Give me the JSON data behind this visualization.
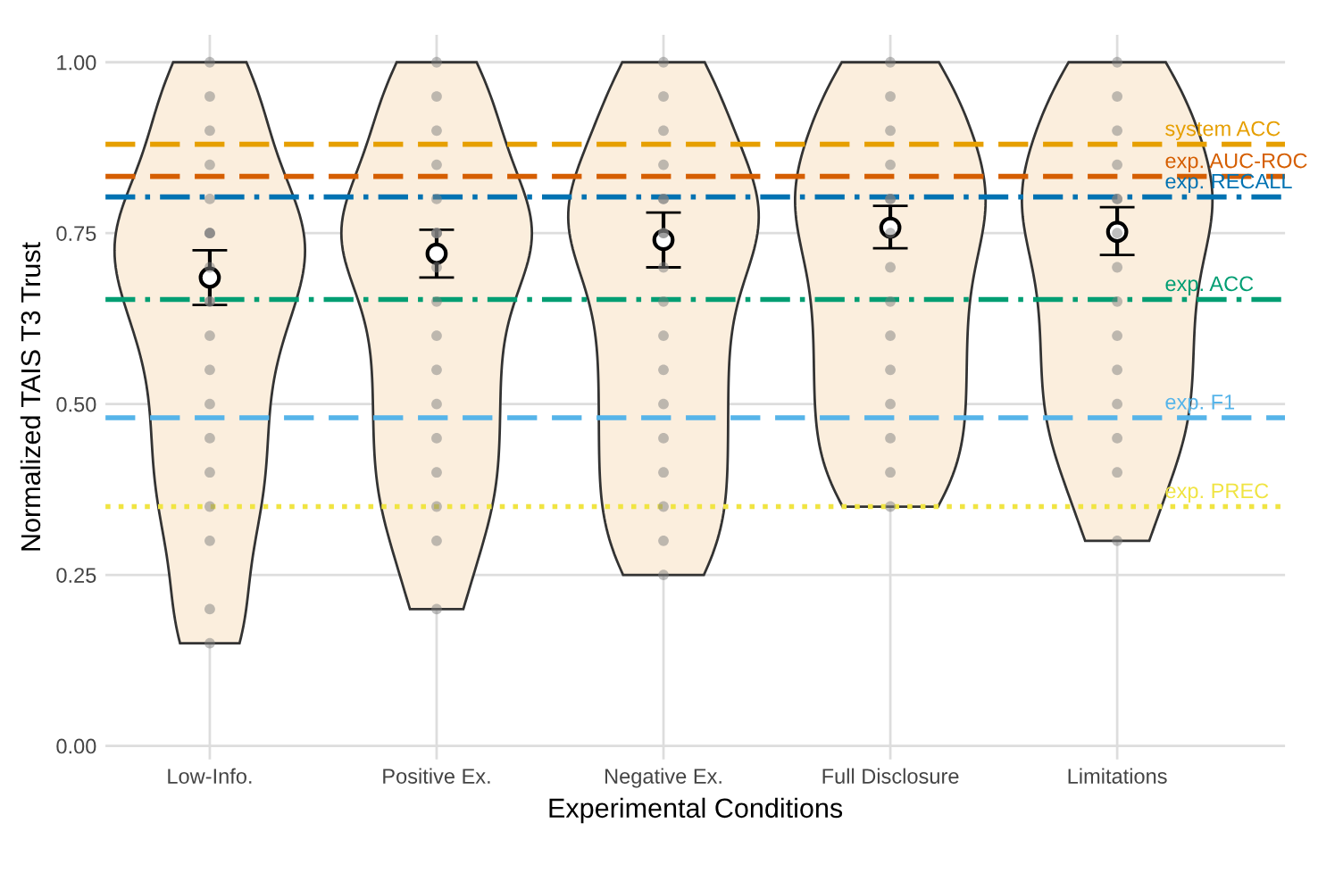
{
  "chart_data": {
    "type": "scatter",
    "xlabel": "Experimental Conditions",
    "ylabel": "Normalized TAIS T3 Trust",
    "categories": [
      "Low-Info.",
      "Positive Ex.",
      "Negative Ex.",
      "Full Disclosure",
      "Limitations"
    ],
    "ylim": [
      -0.02,
      1.04
    ],
    "yticks": [
      {
        "value": 0,
        "label": "0.00"
      },
      {
        "value": 0.25,
        "label": "0.25"
      },
      {
        "value": 0.5,
        "label": "0.50"
      },
      {
        "value": 0.75,
        "label": "0.75"
      },
      {
        "value": 1,
        "label": "1.00"
      }
    ],
    "grid": true,
    "series": [
      {
        "marker": "circle",
        "color": "#7f7f7f",
        "x": [
          "Low-Info.",
          "Low-Info.",
          "Low-Info.",
          "Low-Info.",
          "Low-Info.",
          "Low-Info.",
          "Low-Info.",
          "Low-Info.",
          "Low-Info.",
          "Low-Info.",
          "Low-Info.",
          "Low-Info.",
          "Low-Info.",
          "Low-Info.",
          "Low-Info.",
          "Low-Info.",
          "Low-Info.",
          "Low-Info.",
          "Low-Info.",
          "Low-Info.",
          "Positive Ex.",
          "Positive Ex.",
          "Positive Ex.",
          "Positive Ex.",
          "Positive Ex.",
          "Positive Ex.",
          "Positive Ex.",
          "Positive Ex.",
          "Positive Ex.",
          "Positive Ex.",
          "Positive Ex.",
          "Positive Ex.",
          "Positive Ex.",
          "Positive Ex.",
          "Positive Ex.",
          "Positive Ex.",
          "Positive Ex.",
          "Positive Ex.",
          "Negative Ex.",
          "Negative Ex.",
          "Negative Ex.",
          "Negative Ex.",
          "Negative Ex.",
          "Negative Ex.",
          "Negative Ex.",
          "Negative Ex.",
          "Negative Ex.",
          "Negative Ex.",
          "Negative Ex.",
          "Negative Ex.",
          "Negative Ex.",
          "Negative Ex.",
          "Negative Ex.",
          "Negative Ex.",
          "Negative Ex.",
          "Negative Ex.",
          "Full Disclosure",
          "Full Disclosure",
          "Full Disclosure",
          "Full Disclosure",
          "Full Disclosure",
          "Full Disclosure",
          "Full Disclosure",
          "Full Disclosure",
          "Full Disclosure",
          "Full Disclosure",
          "Full Disclosure",
          "Full Disclosure",
          "Full Disclosure",
          "Full Disclosure",
          "Full Disclosure",
          "Limitations",
          "Limitations",
          "Limitations",
          "Limitations",
          "Limitations",
          "Limitations",
          "Limitations",
          "Limitations",
          "Limitations",
          "Limitations",
          "Limitations",
          "Limitations",
          "Limitations",
          "Limitations",
          "Limitations"
        ],
        "values": [
          1.0,
          0.95,
          0.9,
          0.85,
          0.8,
          0.75,
          0.75,
          0.75,
          0.7,
          0.65,
          0.6,
          0.55,
          0.5,
          0.45,
          0.4,
          0.35,
          0.3,
          0.2,
          0.15,
          0.65,
          1.0,
          0.95,
          0.9,
          0.85,
          0.8,
          0.75,
          0.75,
          0.7,
          0.65,
          0.6,
          0.55,
          0.5,
          0.45,
          0.4,
          0.35,
          0.3,
          0.2,
          0.75,
          1.0,
          0.95,
          0.9,
          0.85,
          0.8,
          0.75,
          0.75,
          0.7,
          0.65,
          0.6,
          0.55,
          0.5,
          0.45,
          0.4,
          0.35,
          0.3,
          0.25,
          0.8,
          1.0,
          0.95,
          0.9,
          0.85,
          0.8,
          0.8,
          0.75,
          0.7,
          0.65,
          0.6,
          0.55,
          0.5,
          0.45,
          0.4,
          0.35,
          1.0,
          0.95,
          0.9,
          0.85,
          0.8,
          0.75,
          0.7,
          0.65,
          0.6,
          0.55,
          0.5,
          0.45,
          0.4,
          0.3,
          0.8
        ]
      },
      {
        "marker": "circle",
        "color": "#000000",
        "x": [
          "Low-Info.",
          "Positive Ex.",
          "Negative Ex.",
          "Full Disclosure",
          "Limitations"
        ],
        "values": [
          0.685,
          0.72,
          0.74,
          0.758,
          0.752
        ],
        "errors": [
          [
            0.645,
            0.725
          ],
          [
            0.685,
            0.755
          ],
          [
            0.7,
            0.78
          ],
          [
            0.728,
            0.79
          ],
          [
            0.718,
            0.788
          ]
        ]
      }
    ],
    "ref_lines": [
      {
        "axis": "y",
        "value": 0.88,
        "label": "system ACC",
        "color": "#e69f00",
        "line_style": "dashed"
      },
      {
        "axis": "y",
        "value": 0.833,
        "label": "exp. AUC-ROC",
        "color": "#d55e00",
        "line_style": "dashed"
      },
      {
        "axis": "y",
        "value": 0.803,
        "label": "exp. RECALL",
        "color": "#0072b2",
        "line_style": "dashdot"
      },
      {
        "axis": "y",
        "value": 0.653,
        "label": "exp. ACC",
        "color": "#009e73",
        "line_style": "dashdot"
      },
      {
        "axis": "y",
        "value": 0.48,
        "label": "exp. F1",
        "color": "#56b4e9",
        "line_style": "dashed"
      },
      {
        "axis": "y",
        "value": 0.35,
        "label": "exp. PREC",
        "color": "#f0e442",
        "line_style": "dotted"
      }
    ]
  }
}
